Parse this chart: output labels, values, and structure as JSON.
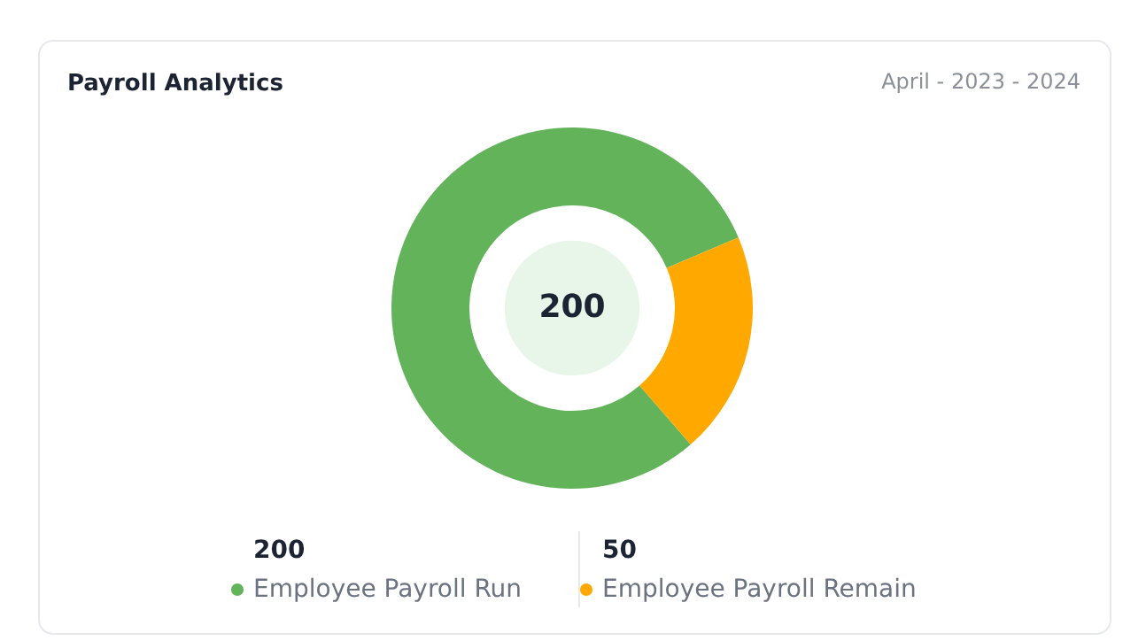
{
  "chart_data": {
    "type": "donut",
    "title": "Payroll Analytics",
    "subtitle": "April - 2023 - 2024",
    "categories": [
      "Employee Payroll Run",
      "Employee Payroll Remain"
    ],
    "values": [
      200,
      50
    ],
    "colors": [
      "#62b35a",
      "#ffa800"
    ],
    "data_labels": true,
    "legend": "bottom",
    "annotations": [
      "200"
    ]
  }
}
